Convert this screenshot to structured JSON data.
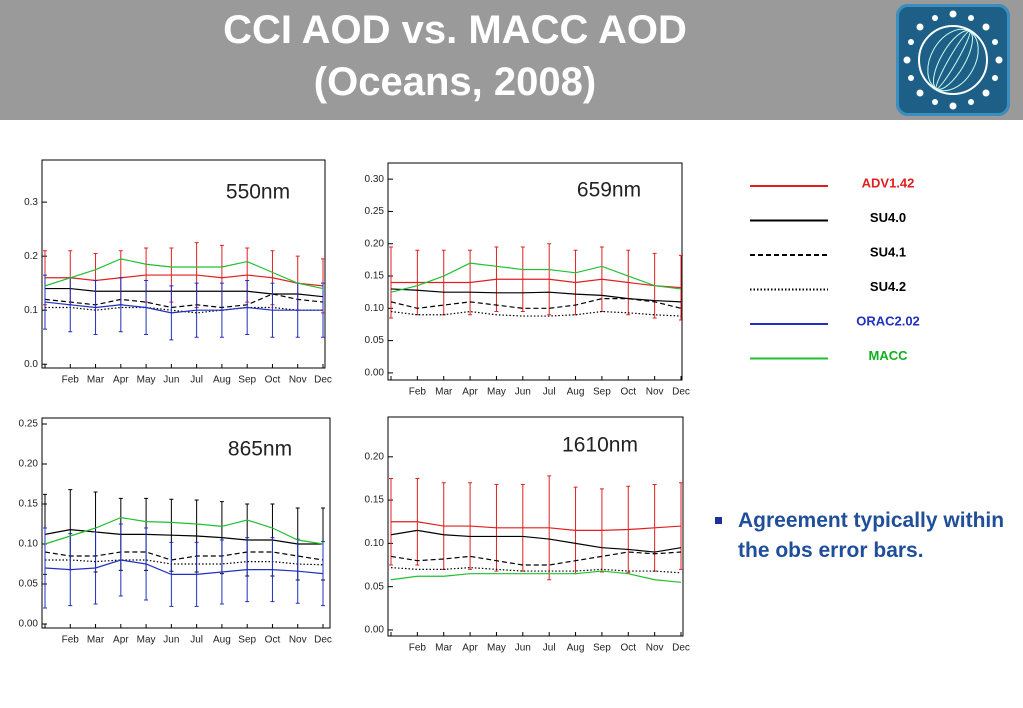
{
  "header": {
    "title_lines": [
      "CCI AOD vs. MACC AOD",
      "(Oceans, 2008)"
    ]
  },
  "bullet": "Agreement typically within the obs error bars.",
  "chart_data": [
    {
      "type": "line",
      "title": "550nm",
      "categories": [
        null,
        "Feb",
        "Mar",
        "Apr",
        "May",
        "Jun",
        "Jul",
        "Aug",
        "Sep",
        "Oct",
        "Nov",
        "Dec"
      ],
      "ylim": [
        -0.007,
        0.378
      ],
      "yticks": [
        {
          "value": 0,
          "label": "0.0"
        },
        0.1,
        0.2,
        0.3
      ],
      "series": [
        {
          "name": "ADV1.42",
          "color": "#e02020",
          "dash": "solid",
          "values": [
            0.16,
            0.16,
            0.155,
            0.16,
            0.165,
            0.165,
            0.165,
            0.16,
            0.165,
            0.16,
            0.15,
            0.145
          ],
          "errors": [
            0.05,
            0.05,
            0.05,
            0.05,
            0.05,
            0.05,
            0.06,
            0.06,
            0.05,
            0.05,
            0.05,
            0.05
          ]
        },
        {
          "name": "SU4.0",
          "color": "#000000",
          "dash": "solid",
          "values": [
            0.14,
            0.14,
            0.135,
            0.135,
            0.135,
            0.135,
            0.135,
            0.135,
            0.135,
            0.13,
            0.13,
            0.125
          ]
        },
        {
          "name": "SU4.1",
          "color": "#000000",
          "dash": "dashed",
          "values": [
            0.12,
            0.115,
            0.11,
            0.12,
            0.115,
            0.105,
            0.11,
            0.105,
            0.11,
            0.13,
            0.12,
            0.115
          ]
        },
        {
          "name": "SU4.2",
          "color": "#000000",
          "dash": "dotted",
          "values": [
            0.105,
            0.105,
            0.1,
            0.105,
            0.105,
            0.1,
            0.095,
            0.1,
            0.105,
            0.105,
            0.1,
            0.1
          ]
        },
        {
          "name": "ORAC2.02",
          "color": "#2030c0",
          "dash": "solid",
          "values": [
            0.115,
            0.11,
            0.105,
            0.11,
            0.105,
            0.095,
            0.1,
            0.1,
            0.105,
            0.1,
            0.1,
            0.1
          ],
          "errors": [
            0.05,
            0.05,
            0.05,
            0.05,
            0.05,
            0.05,
            0.05,
            0.05,
            0.05,
            0.05,
            0.05,
            0.05
          ]
        },
        {
          "name": "MACC",
          "color": "#20c030",
          "dash": "solid",
          "values": [
            0.145,
            0.16,
            0.175,
            0.195,
            0.185,
            0.18,
            0.18,
            0.18,
            0.19,
            0.17,
            0.15,
            0.14
          ]
        }
      ]
    },
    {
      "type": "line",
      "title": "659nm",
      "categories": [
        null,
        "Feb",
        "Mar",
        "Apr",
        "May",
        "Jun",
        "Jul",
        "Aug",
        "Sep",
        "Oct",
        "Nov",
        "Dec"
      ],
      "ylim": [
        -0.011,
        0.325
      ],
      "yticks": [
        {
          "value": 0,
          "label": "0.00"
        },
        0.05,
        {
          "value": 0.1,
          "label": "0.10"
        },
        0.15,
        {
          "value": 0.2,
          "label": "0.20"
        },
        0.25,
        {
          "value": 0.3,
          "label": "0.30"
        }
      ],
      "series": [
        {
          "name": "ADV1.42",
          "color": "#e02020",
          "dash": "solid",
          "values": [
            0.14,
            0.14,
            0.14,
            0.14,
            0.145,
            0.145,
            0.145,
            0.14,
            0.145,
            0.14,
            0.135,
            0.132
          ],
          "errors": [
            0.055,
            0.05,
            0.05,
            0.05,
            0.05,
            0.05,
            0.055,
            0.05,
            0.05,
            0.05,
            0.05,
            0.05
          ]
        },
        {
          "name": "SU4.0",
          "color": "#000000",
          "dash": "solid",
          "values": [
            0.13,
            0.128,
            0.125,
            0.125,
            0.124,
            0.124,
            0.125,
            0.122,
            0.12,
            0.115,
            0.112,
            0.11
          ]
        },
        {
          "name": "SU4.1",
          "color": "#000000",
          "dash": "dashed",
          "values": [
            0.11,
            0.1,
            0.105,
            0.11,
            0.105,
            0.1,
            0.1,
            0.105,
            0.115,
            0.115,
            0.11,
            0.1
          ]
        },
        {
          "name": "SU4.2",
          "color": "#000000",
          "dash": "dotted",
          "values": [
            0.095,
            0.09,
            0.09,
            0.095,
            0.09,
            0.088,
            0.088,
            0.09,
            0.095,
            0.093,
            0.09,
            0.088
          ]
        },
        {
          "name": "MACC",
          "color": "#20c030",
          "dash": "solid",
          "values": [
            0.125,
            0.135,
            0.15,
            0.17,
            0.165,
            0.16,
            0.16,
            0.155,
            0.165,
            0.15,
            0.135,
            0.13
          ]
        }
      ]
    },
    {
      "type": "line",
      "title": "865nm",
      "categories": [
        null,
        "Feb",
        "Mar",
        "Apr",
        "May",
        "Jun",
        "Jul",
        "Aug",
        "Sep",
        "Oct",
        "Nov",
        "Dec"
      ],
      "ylim": [
        -0.005,
        0.2575
      ],
      "yticks": [
        {
          "value": 0,
          "label": "0.00"
        },
        0.05,
        {
          "value": 0.1,
          "label": "0.10"
        },
        0.15,
        {
          "value": 0.2,
          "label": "0.20"
        },
        0.25
      ],
      "series": [
        {
          "name": "SU4.0",
          "color": "#000000",
          "dash": "solid",
          "values": [
            0.112,
            0.118,
            0.115,
            0.112,
            0.112,
            0.111,
            0.11,
            0.108,
            0.105,
            0.105,
            0.1,
            0.1
          ],
          "errors": [
            0.05,
            0.05,
            0.05,
            0.045,
            0.045,
            0.045,
            0.045,
            0.045,
            0.045,
            0.045,
            0.045,
            0.045
          ]
        },
        {
          "name": "SU4.1",
          "color": "#000000",
          "dash": "dashed",
          "values": [
            0.09,
            0.085,
            0.085,
            0.09,
            0.09,
            0.08,
            0.085,
            0.085,
            0.09,
            0.09,
            0.085,
            0.08
          ]
        },
        {
          "name": "SU4.2",
          "color": "#000000",
          "dash": "dotted",
          "values": [
            0.08,
            0.08,
            0.078,
            0.08,
            0.08,
            0.075,
            0.075,
            0.075,
            0.078,
            0.078,
            0.075,
            0.074
          ]
        },
        {
          "name": "ORAC2.02",
          "color": "#2030c0",
          "dash": "solid",
          "values": [
            0.07,
            0.068,
            0.07,
            0.08,
            0.075,
            0.062,
            0.062,
            0.065,
            0.068,
            0.068,
            0.066,
            0.063
          ],
          "errors": [
            0.05,
            0.045,
            0.045,
            0.045,
            0.045,
            0.04,
            0.04,
            0.04,
            0.04,
            0.04,
            0.04,
            0.04
          ]
        },
        {
          "name": "MACC",
          "color": "#20c030",
          "dash": "solid",
          "values": [
            0.1,
            0.11,
            0.12,
            0.133,
            0.128,
            0.127,
            0.125,
            0.122,
            0.13,
            0.12,
            0.105,
            0.1
          ]
        }
      ]
    },
    {
      "type": "line",
      "title": "1610nm",
      "categories": [
        null,
        "Feb",
        "Mar",
        "Apr",
        "May",
        "Jun",
        "Jul",
        "Aug",
        "Sep",
        "Oct",
        "Nov",
        "Dec"
      ],
      "ylim": [
        -0.007,
        0.246
      ],
      "yticks": [
        {
          "value": 0,
          "label": "0.00"
        },
        0.05,
        {
          "value": 0.1,
          "label": "0.10"
        },
        0.15,
        {
          "value": 0.2,
          "label": "0.20"
        }
      ],
      "series": [
        {
          "name": "ADV1.42",
          "color": "#e02020",
          "dash": "solid",
          "values": [
            0.125,
            0.125,
            0.12,
            0.12,
            0.118,
            0.118,
            0.118,
            0.115,
            0.115,
            0.116,
            0.118,
            0.12
          ],
          "errors": [
            0.05,
            0.05,
            0.05,
            0.05,
            0.05,
            0.05,
            0.06,
            0.05,
            0.048,
            0.05,
            0.05,
            0.05
          ]
        },
        {
          "name": "SU4.0",
          "color": "#000000",
          "dash": "solid",
          "values": [
            0.11,
            0.115,
            0.11,
            0.108,
            0.108,
            0.108,
            0.105,
            0.1,
            0.095,
            0.093,
            0.09,
            0.095
          ]
        },
        {
          "name": "SU4.1",
          "color": "#000000",
          "dash": "dashed",
          "values": [
            0.085,
            0.08,
            0.082,
            0.085,
            0.08,
            0.075,
            0.075,
            0.08,
            0.085,
            0.09,
            0.088,
            0.09
          ]
        },
        {
          "name": "SU4.2",
          "color": "#000000",
          "dash": "dotted",
          "values": [
            0.072,
            0.07,
            0.07,
            0.072,
            0.07,
            0.068,
            0.068,
            0.068,
            0.07,
            0.068,
            0.068,
            0.066
          ]
        },
        {
          "name": "MACC",
          "color": "#20c030",
          "dash": "solid",
          "values": [
            0.058,
            0.062,
            0.062,
            0.065,
            0.065,
            0.065,
            0.065,
            0.065,
            0.068,
            0.065,
            0.058,
            0.055
          ]
        }
      ]
    }
  ]
}
